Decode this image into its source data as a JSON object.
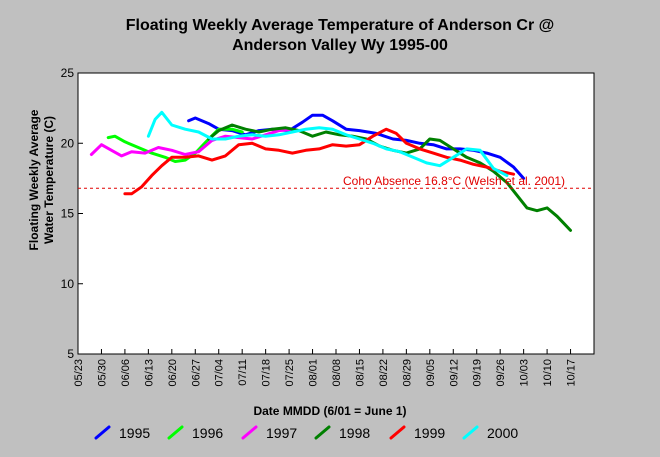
{
  "chart_data": {
    "type": "line",
    "title_line1": "Floating Weekly Average Temperature of Anderson Cr @",
    "title_line2": "Anderson Valley Wy 1995-00",
    "ylabel_line1": "Floating Weekly Average",
    "ylabel_line2": "Water Temperature (C)",
    "xlabel": "Date MMDD (6/01 = June 1)",
    "ylim": [
      5,
      25
    ],
    "yticks": [
      5,
      10,
      15,
      20,
      25
    ],
    "xticks": [
      "05/23",
      "05/30",
      "06/06",
      "06/13",
      "06/20",
      "06/27",
      "07/04",
      "07/11",
      "07/18",
      "07/25",
      "08/01",
      "08/08",
      "08/15",
      "08/22",
      "08/29",
      "09/05",
      "09/12",
      "09/19",
      "09/26",
      "10/03",
      "10/10",
      "10/17"
    ],
    "x_day_range": [
      0,
      154
    ],
    "x_tick_interval_days": 7,
    "grid": false,
    "legend_position": "bottom",
    "threshold": {
      "value": 16.8,
      "label": "Coho Absence 16.8°C (Welsh et al. 2001)",
      "color": "#e00000"
    },
    "series": [
      {
        "name": "1995",
        "color": "#0000ff",
        "x": [
          "06/25",
          "06/27",
          "07/01",
          "07/04",
          "07/08",
          "07/12",
          "07/16",
          "07/20",
          "07/25",
          "07/29",
          "08/01",
          "08/04",
          "08/07",
          "08/11",
          "08/15",
          "08/20",
          "08/25",
          "08/29",
          "09/02",
          "09/06",
          "09/10",
          "09/14",
          "09/18",
          "09/22",
          "09/26",
          "09/30",
          "10/03"
        ],
        "y": [
          21.6,
          21.8,
          21.4,
          21.0,
          20.9,
          20.6,
          20.9,
          21.0,
          20.9,
          21.5,
          22.0,
          22.0,
          21.6,
          21.0,
          20.9,
          20.7,
          20.3,
          20.2,
          20.0,
          19.9,
          19.6,
          19.6,
          19.5,
          19.3,
          19.0,
          18.3,
          17.5
        ]
      },
      {
        "name": "1996",
        "color": "#00ff00",
        "x": [
          "06/01",
          "06/03",
          "06/06",
          "06/10",
          "06/14",
          "06/18",
          "06/21",
          "06/24",
          "06/27",
          "07/01",
          "07/04",
          "07/08",
          "07/11"
        ],
        "y": [
          20.4,
          20.5,
          20.1,
          19.7,
          19.3,
          19.0,
          18.7,
          18.8,
          19.3,
          20.3,
          21.0,
          21.0,
          20.8
        ]
      },
      {
        "name": "1997",
        "color": "#ff00ff",
        "x": [
          "05/27",
          "05/30",
          "06/02",
          "06/05",
          "06/08",
          "06/12",
          "06/16",
          "06/20",
          "06/24",
          "06/28",
          "07/02",
          "07/06",
          "07/10",
          "07/14",
          "07/18",
          "07/22",
          "07/26"
        ],
        "y": [
          19.2,
          19.9,
          19.5,
          19.1,
          19.4,
          19.3,
          19.7,
          19.5,
          19.2,
          19.4,
          20.2,
          20.5,
          20.4,
          20.3,
          20.6,
          20.9,
          21.0
        ]
      },
      {
        "name": "1998",
        "color": "#008000",
        "x": [
          "07/01",
          "07/04",
          "07/08",
          "07/12",
          "07/16",
          "07/20",
          "07/24",
          "07/28",
          "08/01",
          "08/05",
          "08/09",
          "08/13",
          "08/17",
          "08/21",
          "08/25",
          "08/29",
          "09/02",
          "09/05",
          "09/08",
          "09/12",
          "09/16",
          "09/20",
          "09/24",
          "09/28",
          "10/01",
          "10/04",
          "10/07",
          "10/10",
          "10/13",
          "10/15",
          "10/17"
        ],
        "y": [
          20.3,
          20.9,
          21.3,
          21.0,
          20.8,
          21.0,
          21.1,
          20.9,
          20.5,
          20.8,
          20.6,
          20.5,
          20.3,
          19.8,
          19.5,
          19.3,
          19.6,
          20.3,
          20.2,
          19.6,
          19.0,
          18.6,
          18.0,
          17.2,
          16.3,
          15.4,
          15.2,
          15.4,
          14.8,
          14.3,
          13.8
        ]
      },
      {
        "name": "1999",
        "color": "#ff0000",
        "x": [
          "06/06",
          "06/08",
          "06/11",
          "06/14",
          "06/17",
          "06/20",
          "06/24",
          "06/28",
          "07/02",
          "07/06",
          "07/10",
          "07/14",
          "07/18",
          "07/22",
          "07/26",
          "07/30",
          "08/03",
          "08/07",
          "08/11",
          "08/15",
          "08/19",
          "08/23",
          "08/26",
          "08/29",
          "09/02",
          "09/06",
          "09/10",
          "09/14",
          "09/18",
          "09/22",
          "09/26",
          "09/30"
        ],
        "y": [
          16.4,
          16.4,
          16.9,
          17.7,
          18.4,
          19.0,
          19.0,
          19.1,
          18.8,
          19.1,
          19.9,
          20.0,
          19.6,
          19.5,
          19.3,
          19.5,
          19.6,
          19.9,
          19.8,
          19.9,
          20.5,
          21.0,
          20.7,
          20.0,
          19.6,
          19.3,
          19.0,
          18.8,
          18.5,
          18.3,
          18.0,
          17.8
        ]
      },
      {
        "name": "2000",
        "color": "#00ffff",
        "x": [
          "06/13",
          "06/15",
          "06/17",
          "06/20",
          "06/24",
          "06/28",
          "07/02",
          "07/06",
          "07/10",
          "07/14",
          "07/18",
          "07/22",
          "07/26",
          "07/30",
          "08/03",
          "08/07",
          "08/11",
          "08/15",
          "08/19",
          "08/23",
          "08/27",
          "08/31",
          "09/04",
          "09/08",
          "09/12",
          "09/16",
          "09/20",
          "09/24",
          "09/28"
        ],
        "y": [
          20.5,
          21.7,
          22.2,
          21.3,
          21.0,
          20.8,
          20.3,
          20.3,
          20.5,
          20.6,
          20.5,
          20.6,
          20.8,
          21.0,
          21.1,
          21.0,
          20.6,
          20.3,
          20.0,
          19.6,
          19.4,
          19.0,
          18.6,
          18.4,
          19.0,
          19.6,
          19.5,
          18.2,
          17.7
        ]
      }
    ]
  }
}
